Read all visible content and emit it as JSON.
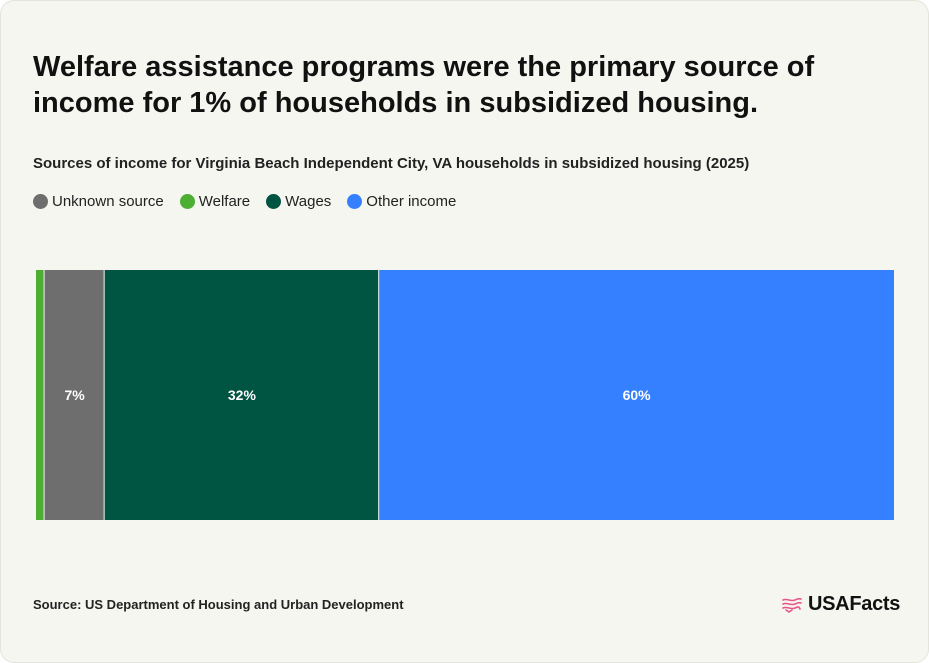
{
  "title": "Welfare assistance programs were the primary source of income for 1% of households in subsidized housing.",
  "subtitle": "Sources of income for Virginia Beach Independent City, VA households in subsidized housing (2025)",
  "legend": [
    {
      "label": "Unknown source",
      "color": "#6e6e6e"
    },
    {
      "label": "Welfare",
      "color": "#4cae33"
    },
    {
      "label": "Wages",
      "color": "#005442"
    },
    {
      "label": "Other income",
      "color": "#3580ff"
    }
  ],
  "chart_data": {
    "type": "bar",
    "orientation": "horizontal-stacked-100",
    "unit": "%",
    "series": [
      {
        "name": "Welfare",
        "value": 1,
        "label": "",
        "color": "#4cae33"
      },
      {
        "name": "Unknown source",
        "value": 7,
        "label": "7%",
        "color": "#6e6e6e"
      },
      {
        "name": "Wages",
        "value": 32,
        "label": "32%",
        "color": "#005442"
      },
      {
        "name": "Other income",
        "value": 60,
        "label": "60%",
        "color": "#3580ff"
      }
    ]
  },
  "source": "Source: US Department of Housing and Urban Development",
  "logo": {
    "text": "USAFacts",
    "icon": "flag-icon",
    "icon_color": "#e8558a"
  }
}
